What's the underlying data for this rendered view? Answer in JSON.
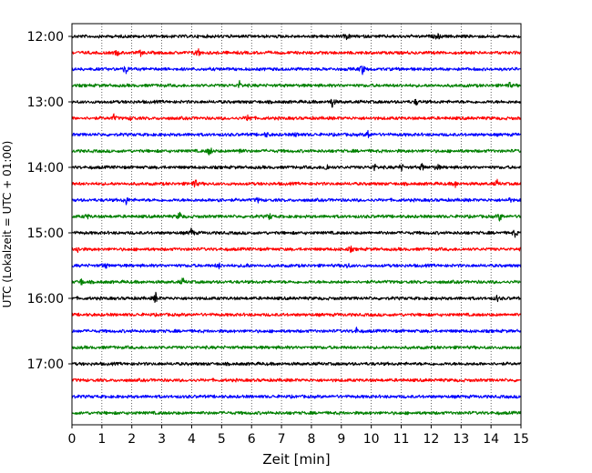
{
  "chart_data": {
    "type": "line",
    "xlabel": "Zeit  [min]",
    "ylabel": "UTC (Lokalzeit = UTC + 01:00)",
    "xlim": [
      0,
      15
    ],
    "x_ticks": [
      "0",
      "1",
      "2",
      "3",
      "4",
      "5",
      "6",
      "7",
      "8",
      "9",
      "10",
      "11",
      "12",
      "13",
      "14",
      "15"
    ],
    "y_ticks": [
      {
        "label": "12:00",
        "trace": 0
      },
      {
        "label": "13:00",
        "trace": 4
      },
      {
        "label": "14:00",
        "trace": 8
      },
      {
        "label": "15:00",
        "trace": 12
      },
      {
        "label": "16:00",
        "trace": 16
      },
      {
        "label": "17:00",
        "trace": 20
      }
    ],
    "grid": "vertical dotted",
    "trace_interval_minutes": 15,
    "trace_colors": [
      "#000000",
      "#ff0000",
      "#0000ff",
      "#008000"
    ],
    "traces": [
      {
        "start": "12:00",
        "events": [
          {
            "x": 9.2,
            "a": 0.55
          },
          {
            "x": 12.2,
            "a": 0.65
          }
        ]
      },
      {
        "start": "12:15",
        "events": [
          {
            "x": 1.5,
            "a": 0.45
          },
          {
            "x": 2.3,
            "a": 0.4
          },
          {
            "x": 4.2,
            "a": 1.0
          }
        ]
      },
      {
        "start": "12:30",
        "events": [
          {
            "x": 1.8,
            "a": 0.9
          },
          {
            "x": 9.7,
            "a": 1.0
          }
        ]
      },
      {
        "start": "12:45",
        "events": [
          {
            "x": 5.6,
            "a": 0.6
          },
          {
            "x": 14.6,
            "a": 0.55
          }
        ]
      },
      {
        "start": "13:00",
        "events": [
          {
            "x": 8.7,
            "a": 1.0
          },
          {
            "x": 11.5,
            "a": 0.45
          }
        ]
      },
      {
        "start": "13:15",
        "events": [
          {
            "x": 1.4,
            "a": 0.5
          },
          {
            "x": 2.0,
            "a": 0.4
          },
          {
            "x": 5.9,
            "a": 0.9
          }
        ]
      },
      {
        "start": "13:30",
        "events": [
          {
            "x": 6.5,
            "a": 0.4
          },
          {
            "x": 7.5,
            "a": 0.4
          },
          {
            "x": 9.9,
            "a": 0.8
          }
        ]
      },
      {
        "start": "13:45",
        "events": [
          {
            "x": 4.6,
            "a": 0.9
          },
          {
            "x": 5.6,
            "a": 0.6
          }
        ]
      },
      {
        "start": "14:00",
        "events": [
          {
            "x": 8.5,
            "a": 0.8
          },
          {
            "x": 10.1,
            "a": 0.6
          },
          {
            "x": 11.0,
            "a": 0.6
          },
          {
            "x": 11.7,
            "a": 0.6
          },
          {
            "x": 12.2,
            "a": 0.6
          }
        ]
      },
      {
        "start": "14:15",
        "events": [
          {
            "x": 4.1,
            "a": 1.0
          },
          {
            "x": 12.8,
            "a": 0.55
          },
          {
            "x": 14.2,
            "a": 0.55
          }
        ]
      },
      {
        "start": "14:30",
        "events": [
          {
            "x": 1.8,
            "a": 0.8
          },
          {
            "x": 4.9,
            "a": 0.5
          },
          {
            "x": 6.2,
            "a": 0.4
          },
          {
            "x": 14.6,
            "a": 0.4
          }
        ]
      },
      {
        "start": "14:45",
        "events": [
          {
            "x": 0.5,
            "a": 0.45
          },
          {
            "x": 3.6,
            "a": 0.8
          },
          {
            "x": 6.6,
            "a": 0.55
          },
          {
            "x": 14.3,
            "a": 0.8
          }
        ]
      },
      {
        "start": "15:00",
        "events": [
          {
            "x": 4.0,
            "a": 0.8
          },
          {
            "x": 14.8,
            "a": 0.6
          }
        ]
      },
      {
        "start": "15:15",
        "events": [
          {
            "x": 0.2,
            "a": 0.5
          },
          {
            "x": 9.3,
            "a": 0.5
          }
        ]
      },
      {
        "start": "15:30",
        "events": [
          {
            "x": 1.1,
            "a": 0.6
          },
          {
            "x": 4.9,
            "a": 0.5
          },
          {
            "x": 5.8,
            "a": 0.5
          },
          {
            "x": 9.2,
            "a": 0.4
          }
        ]
      },
      {
        "start": "15:45",
        "events": [
          {
            "x": 0.3,
            "a": 0.6
          },
          {
            "x": 3.7,
            "a": 0.6
          }
        ]
      },
      {
        "start": "16:00",
        "events": [
          {
            "x": 2.8,
            "a": 0.9
          },
          {
            "x": 14.2,
            "a": 0.5
          }
        ]
      },
      {
        "start": "16:15",
        "events": []
      },
      {
        "start": "16:30",
        "events": [
          {
            "x": 9.5,
            "a": 0.5
          }
        ]
      },
      {
        "start": "16:45",
        "events": []
      },
      {
        "start": "17:00",
        "events": []
      },
      {
        "start": "17:15",
        "events": []
      },
      {
        "start": "17:30",
        "events": []
      },
      {
        "start": "17:45",
        "events": []
      }
    ]
  }
}
